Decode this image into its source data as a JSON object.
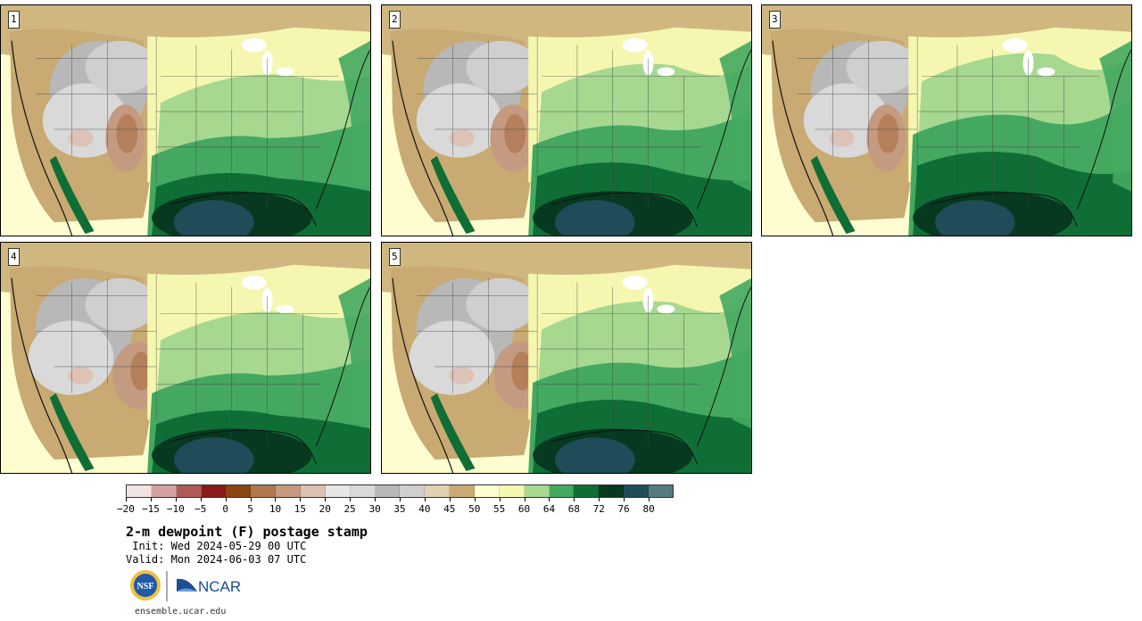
{
  "panels": [
    {
      "label": "1",
      "moist_shift": 0,
      "dry_shift": 0
    },
    {
      "label": "2",
      "moist_shift": 1,
      "dry_shift": 1
    },
    {
      "label": "3",
      "moist_shift": 2,
      "dry_shift": 0
    },
    {
      "label": "4",
      "moist_shift": 0,
      "dry_shift": 2
    },
    {
      "label": "5",
      "moist_shift": 1,
      "dry_shift": 2
    }
  ],
  "colorbar": {
    "colors": [
      "#f2e3e3",
      "#d4a0a0",
      "#b05a5a",
      "#8b1a1a",
      "#8b4513",
      "#b07850",
      "#c49a80",
      "#dcc0b0",
      "#e6e6e6",
      "#d9d9d9",
      "#b8b8b8",
      "#cfcfcf",
      "#e0d2b0",
      "#c8aa72",
      "#fffdd0",
      "#f5f7b0",
      "#a6d890",
      "#45a860",
      "#0f6e35",
      "#06391f",
      "#1f4c58",
      "#557b80"
    ],
    "ticks": [
      "−20",
      "−15",
      "−10",
      "−5",
      "0",
      "5",
      "10",
      "15",
      "20",
      "25",
      "30",
      "35",
      "40",
      "45",
      "50",
      "55",
      "60",
      "64",
      "68",
      "72",
      "76",
      "80"
    ]
  },
  "title": "2-m dewpoint (F) postage stamp",
  "init": " Init: Wed 2024-05-29 00 UTC",
  "valid": "Valid: Mon 2024-06-03 07 UTC",
  "logos": {
    "nsf": "NSF",
    "ncar": "NCAR"
  },
  "footer": "ensemble.ucar.edu"
}
